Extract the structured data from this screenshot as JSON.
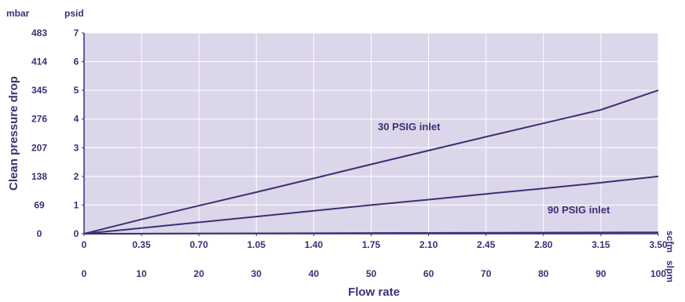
{
  "chart_data": {
    "type": "line",
    "xlabel": "Flow rate",
    "ylabel": "Clean pressure drop",
    "x_unit_primary": "scfm",
    "x_unit_secondary": "slpm",
    "y_unit_left": "mbar",
    "y_unit_right": "psid",
    "xlim": [
      0,
      3.5
    ],
    "ylim": [
      0,
      7
    ],
    "x_ticks_scfm": [
      "0",
      "0.35",
      "0.70",
      "1.05",
      "1.40",
      "1.75",
      "2.10",
      "2.45",
      "2.80",
      "3.15",
      "3.50"
    ],
    "x_ticks_slpm": [
      "0",
      "10",
      "20",
      "30",
      "40",
      "50",
      "60",
      "70",
      "80",
      "90",
      "100"
    ],
    "y_ticks_psid": [
      "0",
      "1",
      "2",
      "3",
      "4",
      "5",
      "6",
      "7"
    ],
    "y_ticks_mbar": [
      "0",
      "69",
      "138",
      "207",
      "276",
      "345",
      "414",
      "483"
    ],
    "grid": true,
    "series": [
      {
        "name": "30 PSIG inlet",
        "x": [
          0,
          0.35,
          0.7,
          1.05,
          1.4,
          1.75,
          2.1,
          2.45,
          2.8,
          3.15,
          3.5
        ],
        "y": [
          0,
          0.5,
          0.98,
          1.45,
          1.93,
          2.42,
          2.9,
          3.38,
          3.85,
          4.32,
          5.0
        ]
      },
      {
        "name": "90 PSIG inlet",
        "x": [
          0,
          0.35,
          0.7,
          1.05,
          1.4,
          1.75,
          2.1,
          2.45,
          2.8,
          3.15,
          3.5
        ],
        "y": [
          0,
          0.2,
          0.4,
          0.6,
          0.8,
          1.0,
          1.19,
          1.39,
          1.58,
          1.78,
          2.0
        ]
      },
      {
        "name": "",
        "x": [
          0,
          3.5
        ],
        "y": [
          0,
          0.05
        ]
      }
    ],
    "colors": {
      "plot_background": "#dcd6ea",
      "grid": "#ffffff",
      "line": "#3d2f75",
      "text": "#3d2f75"
    }
  }
}
